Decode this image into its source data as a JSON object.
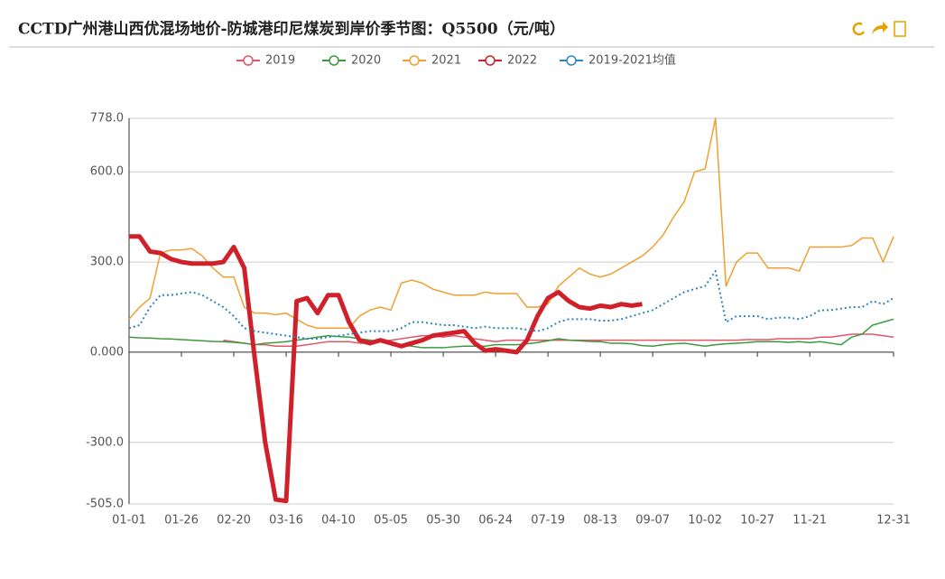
{
  "chart_data": {
    "type": "line",
    "title": "CCTD广州港山西优混场地价-防城港印尼煤炭到岸价季节图：Q5500（元/吨）",
    "x": [
      0,
      5,
      10,
      15,
      20,
      25,
      30,
      35,
      40,
      45,
      50,
      55,
      60,
      65,
      70,
      75,
      80,
      85,
      90,
      95,
      100,
      105,
      110,
      115,
      120,
      125,
      130,
      135,
      140,
      145,
      150,
      155,
      160,
      165,
      170,
      175,
      180,
      185,
      190,
      195,
      200,
      205,
      210,
      215,
      220,
      225,
      230,
      235,
      240,
      245,
      250,
      255,
      260,
      265,
      270,
      275,
      280,
      285,
      290,
      295,
      300,
      305,
      310,
      315,
      320,
      325,
      330,
      335,
      340,
      345,
      350,
      355,
      360,
      365
    ],
    "xlim": [
      0,
      365
    ],
    "xticks": [
      {
        "value": 0,
        "label": "01-01"
      },
      {
        "value": 25,
        "label": "01-26"
      },
      {
        "value": 50,
        "label": "02-20"
      },
      {
        "value": 75,
        "label": "03-16"
      },
      {
        "value": 100,
        "label": "04-10"
      },
      {
        "value": 125,
        "label": "05-05"
      },
      {
        "value": 150,
        "label": "05-30"
      },
      {
        "value": 175,
        "label": "06-24"
      },
      {
        "value": 200,
        "label": "07-19"
      },
      {
        "value": 225,
        "label": "08-13"
      },
      {
        "value": 250,
        "label": "09-07"
      },
      {
        "value": 275,
        "label": "10-02"
      },
      {
        "value": 300,
        "label": "10-27"
      },
      {
        "value": 325,
        "label": "11-21"
      },
      {
        "value": 365,
        "label": "12-31"
      }
    ],
    "ylim": [
      -505,
      778
    ],
    "yticks": [
      {
        "value": 778,
        "label": "778.0"
      },
      {
        "value": 600,
        "label": "600.0"
      },
      {
        "value": 300,
        "label": "300.0"
      },
      {
        "value": 0,
        "label": "0.000"
      },
      {
        "value": -300,
        "label": "-300.0"
      },
      {
        "value": -505,
        "label": "-505.0"
      }
    ],
    "grid": true,
    "series": [
      {
        "name": "2019",
        "color": "#e0566a",
        "width": 1.5,
        "values": [
          null,
          null,
          null,
          null,
          null,
          null,
          null,
          null,
          null,
          40,
          35,
          30,
          25,
          25,
          20,
          20,
          20,
          25,
          30,
          35,
          35,
          35,
          30,
          30,
          35,
          40,
          45,
          50,
          55,
          55,
          50,
          55,
          50,
          45,
          40,
          35,
          40,
          40,
          40,
          40,
          40,
          40,
          40,
          40,
          40,
          40,
          40,
          40,
          40,
          40,
          40,
          40,
          40,
          40,
          40,
          40,
          40,
          40,
          40,
          42,
          42,
          42,
          45,
          45,
          45,
          45,
          50,
          50,
          55,
          60,
          60,
          60,
          55,
          50
        ]
      },
      {
        "name": "2020",
        "color": "#3c9a3c",
        "width": 1.5,
        "values": [
          50,
          48,
          47,
          45,
          44,
          42,
          40,
          38,
          36,
          35,
          33,
          30,
          25,
          30,
          32,
          35,
          40,
          45,
          50,
          55,
          52,
          50,
          45,
          40,
          35,
          30,
          25,
          20,
          15,
          15,
          15,
          18,
          20,
          20,
          20,
          25,
          25,
          25,
          28,
          32,
          38,
          45,
          40,
          38,
          36,
          35,
          30,
          30,
          28,
          22,
          20,
          25,
          28,
          30,
          25,
          20,
          25,
          28,
          30,
          32,
          35,
          35,
          35,
          33,
          35,
          32,
          35,
          30,
          25,
          50,
          60,
          90,
          100,
          110
        ]
      },
      {
        "name": "2021",
        "color": "#f0a030",
        "width": 1.5,
        "values": [
          110,
          150,
          180,
          330,
          340,
          340,
          345,
          320,
          280,
          250,
          250,
          150,
          130,
          130,
          125,
          130,
          110,
          90,
          80,
          80,
          80,
          80,
          120,
          140,
          150,
          140,
          230,
          240,
          230,
          210,
          200,
          190,
          190,
          190,
          200,
          195,
          195,
          195,
          150,
          150,
          160,
          220,
          250,
          280,
          260,
          250,
          260,
          280,
          300,
          320,
          350,
          390,
          450,
          500,
          600,
          610,
          778,
          220,
          300,
          330,
          330,
          280,
          280,
          280,
          270,
          350,
          350,
          350,
          350,
          355,
          380,
          380,
          300,
          385
        ]
      },
      {
        "name": "2022",
        "color": "#d0202a",
        "width": 5,
        "values": [
          385,
          385,
          335,
          330,
          310,
          300,
          295,
          295,
          295,
          300,
          350,
          280,
          -20,
          -300,
          -490,
          -495,
          170,
          180,
          130,
          190,
          190,
          100,
          40,
          30,
          40,
          30,
          20,
          30,
          40,
          55,
          60,
          65,
          70,
          30,
          5,
          10,
          5,
          0,
          40,
          120,
          180,
          200,
          170,
          150,
          145,
          155,
          150,
          160,
          155,
          160,
          null,
          null,
          null,
          null,
          null,
          null,
          null,
          null,
          null,
          null,
          null,
          null,
          null,
          null,
          null,
          null,
          null,
          null,
          null,
          null,
          null,
          null,
          null,
          null
        ]
      },
      {
        "name": "2019-2021均值",
        "color": "#2e86c1",
        "width": 2,
        "dashed": true,
        "values": [
          80,
          90,
          150,
          190,
          190,
          195,
          200,
          190,
          170,
          150,
          120,
          80,
          70,
          65,
          60,
          55,
          50,
          45,
          45,
          50,
          55,
          60,
          65,
          70,
          70,
          70,
          80,
          100,
          100,
          95,
          90,
          90,
          85,
          80,
          85,
          80,
          80,
          80,
          75,
          70,
          80,
          100,
          110,
          110,
          110,
          105,
          105,
          110,
          120,
          130,
          140,
          160,
          180,
          200,
          210,
          220,
          270,
          100,
          120,
          120,
          120,
          110,
          115,
          115,
          110,
          120,
          140,
          140,
          145,
          150,
          150,
          170,
          160,
          180
        ]
      }
    ]
  }
}
